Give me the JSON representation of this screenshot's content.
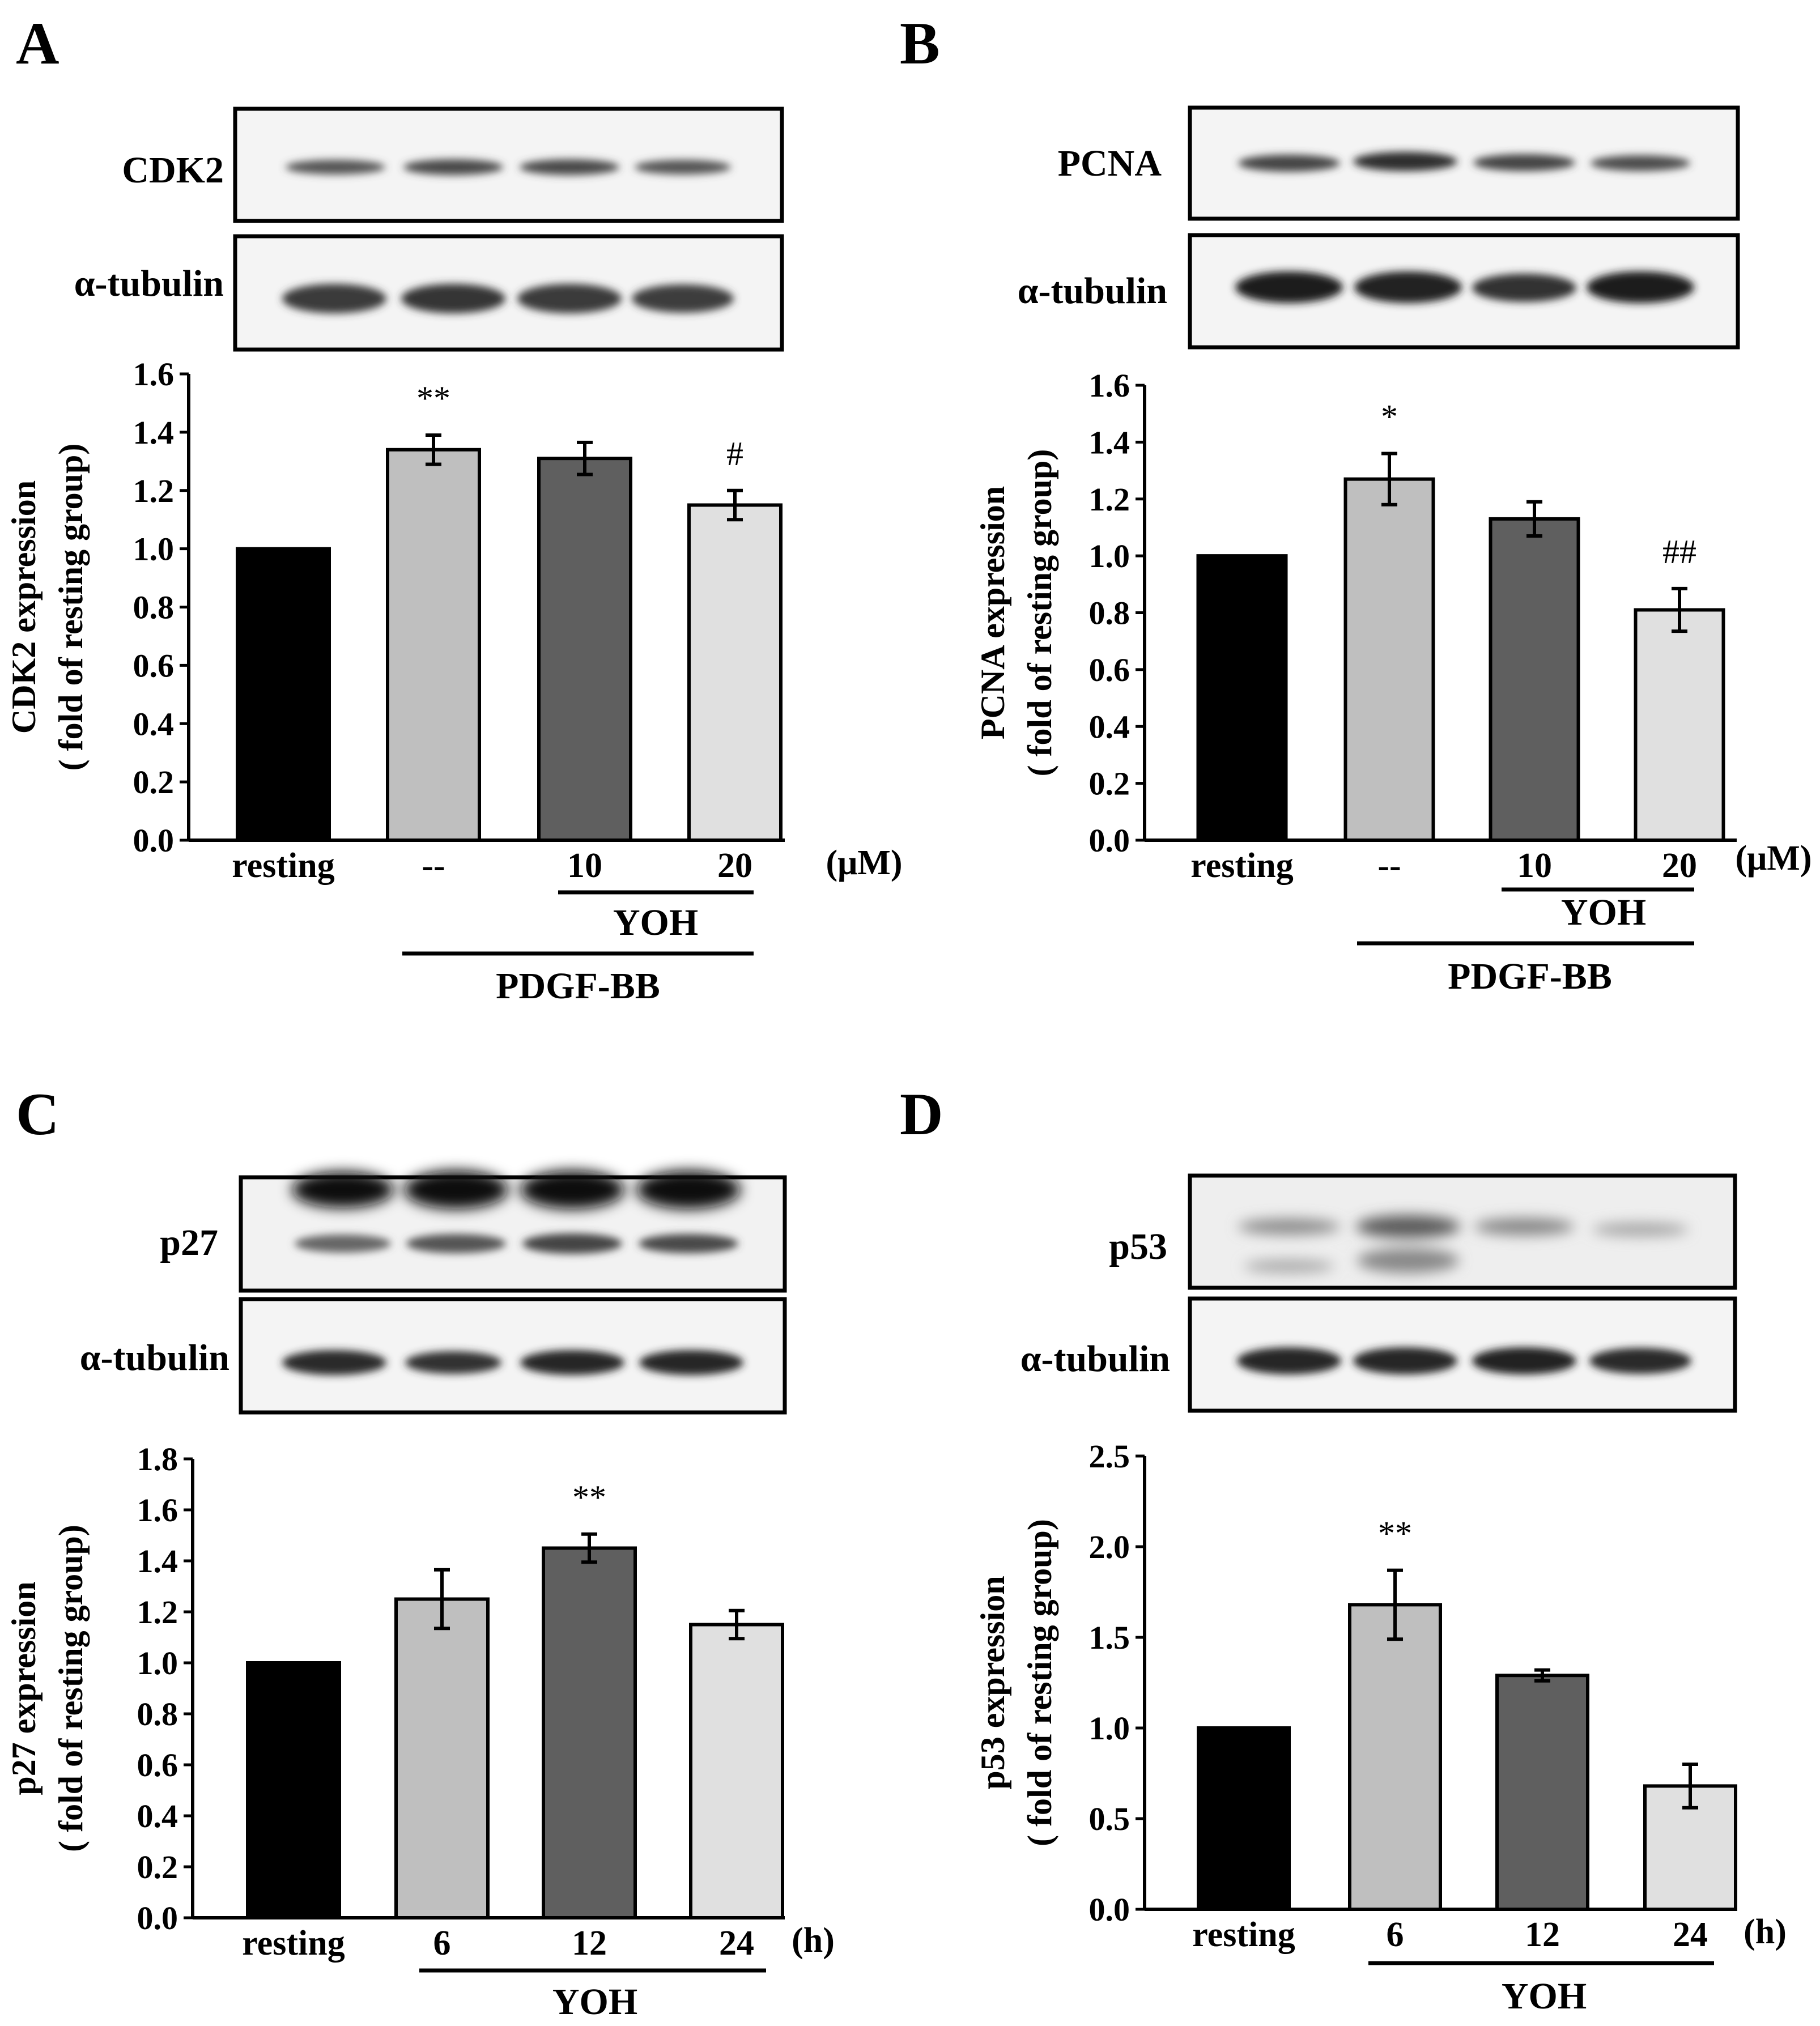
{
  "figure": {
    "panels": [
      {
        "letter": "A",
        "blots": [
          {
            "label": "CDK2"
          },
          {
            "label": "α-tubulin"
          }
        ],
        "unit": "(μM)",
        "subgroups": [
          {
            "label": "YOH"
          },
          {
            "label": "PDGF-BB"
          }
        ]
      },
      {
        "letter": "B",
        "blots": [
          {
            "label": "PCNA"
          },
          {
            "label": "α-tubulin"
          }
        ],
        "unit": "(μM)",
        "subgroups": [
          {
            "label": "YOH"
          },
          {
            "label": "PDGF-BB"
          }
        ]
      },
      {
        "letter": "C",
        "blots": [
          {
            "label": "p27"
          },
          {
            "label": "α-tubulin"
          }
        ],
        "unit": "(h)",
        "subgroups": [
          {
            "label": "YOH"
          }
        ]
      },
      {
        "letter": "D",
        "blots": [
          {
            "label": "p53"
          },
          {
            "label": "α-tubulin"
          }
        ],
        "unit": "(h)",
        "subgroups": [
          {
            "label": "YOH"
          }
        ]
      }
    ]
  },
  "colors": {
    "resting": "#000000",
    "light": "#bfbfbf",
    "dark": "#5f5f5f",
    "lighter": "#e0e0e0"
  },
  "chart_data": [
    {
      "type": "bar",
      "ylabel_line1": "CDK2 expression",
      "ylabel_line2": "( fold of resting group)",
      "ylim": [
        0,
        1.6
      ],
      "yticks": [
        "0.0",
        "0.2",
        "0.4",
        "0.6",
        "0.8",
        "1.0",
        "1.2",
        "1.4",
        "1.6"
      ],
      "categories": [
        "resting",
        "--",
        "10",
        "20"
      ],
      "values": [
        1.0,
        1.34,
        1.31,
        1.15
      ],
      "errors": [
        0,
        0.05,
        0.055,
        0.05
      ],
      "annotations": [
        "",
        "**",
        "",
        "#"
      ],
      "grid": false
    },
    {
      "type": "bar",
      "ylabel_line1": "PCNA expression",
      "ylabel_line2": "( fold of resting group)",
      "ylim": [
        0,
        1.6
      ],
      "yticks": [
        "0.0",
        "0.2",
        "0.4",
        "0.6",
        "0.8",
        "1.0",
        "1.2",
        "1.4",
        "1.6"
      ],
      "categories": [
        "resting",
        "--",
        "10",
        "20"
      ],
      "values": [
        1.0,
        1.27,
        1.13,
        0.81
      ],
      "errors": [
        0,
        0.09,
        0.06,
        0.075
      ],
      "annotations": [
        "",
        "*",
        "",
        "##"
      ],
      "grid": false
    },
    {
      "type": "bar",
      "ylabel_line1": "p27 expression",
      "ylabel_line2": "( fold of resting group)",
      "ylim": [
        0,
        1.8
      ],
      "yticks": [
        "0.0",
        "0.2",
        "0.4",
        "0.6",
        "0.8",
        "1.0",
        "1.2",
        "1.4",
        "1.6",
        "1.8"
      ],
      "categories": [
        "resting",
        "6",
        "12",
        "24"
      ],
      "values": [
        1.0,
        1.25,
        1.45,
        1.15
      ],
      "errors": [
        0,
        0.115,
        0.055,
        0.055
      ],
      "annotations": [
        "",
        "",
        "**",
        ""
      ],
      "grid": false
    },
    {
      "type": "bar",
      "ylabel_line1": "p53 expression",
      "ylabel_line2": "( fold of resting group)",
      "ylim": [
        0,
        2.5
      ],
      "yticks": [
        "0.0",
        "0.5",
        "1.0",
        "1.5",
        "2.0",
        "2.5"
      ],
      "categories": [
        "resting",
        "6",
        "12",
        "24"
      ],
      "values": [
        1.0,
        1.68,
        1.29,
        0.68
      ],
      "errors": [
        0,
        0.19,
        0.03,
        0.12
      ],
      "annotations": [
        "",
        "**",
        "",
        ""
      ],
      "grid": false
    }
  ]
}
